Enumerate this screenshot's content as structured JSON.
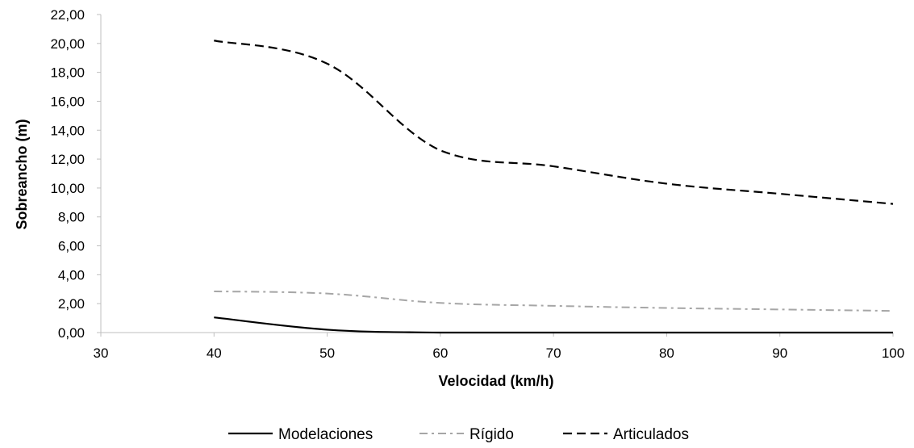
{
  "chart_data": {
    "type": "line",
    "xlabel": "Velocidad (km/h)",
    "ylabel": "Sobreancho (m)",
    "xlim": [
      30,
      100
    ],
    "ylim": [
      0,
      22
    ],
    "xticks": [
      "30",
      "40",
      "50",
      "60",
      "70",
      "80",
      "90",
      "100"
    ],
    "yticks": [
      "0,00",
      "2,00",
      "4,00",
      "6,00",
      "8,00",
      "10,00",
      "12,00",
      "14,00",
      "16,00",
      "18,00",
      "20,00",
      "22,00"
    ],
    "x": [
      40,
      50,
      60,
      70,
      80,
      90,
      100
    ],
    "grid": false,
    "legend_position": "bottom",
    "series": [
      {
        "name": "Modelaciones",
        "values": [
          1.05,
          0.2,
          0.0,
          0.0,
          0.0,
          0.0,
          0.0
        ],
        "color": "#000000",
        "dash": "solid"
      },
      {
        "name": "Rígido",
        "values": [
          2.85,
          2.7,
          2.05,
          1.85,
          1.7,
          1.6,
          1.5
        ],
        "color": "#a6a6a6",
        "dash": "dashdot"
      },
      {
        "name": "Articulados",
        "values": [
          20.2,
          18.6,
          12.6,
          11.5,
          10.3,
          9.6,
          8.9
        ],
        "color": "#000000",
        "dash": "dashed"
      }
    ]
  }
}
